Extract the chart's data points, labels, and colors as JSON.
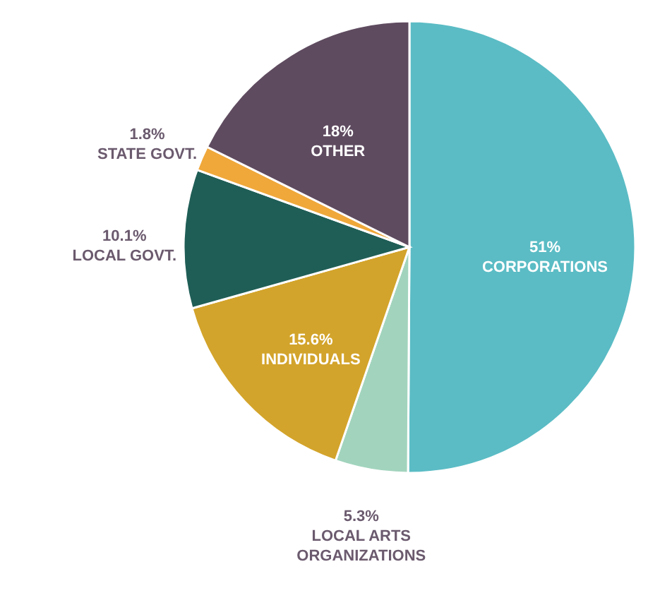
{
  "chart_data": {
    "type": "pie",
    "categories": [
      "CORPORATIONS",
      "LOCAL ARTS ORGANIZATIONS",
      "INDIVIDUALS",
      "LOCAL GOVT.",
      "STATE GOVT.",
      "OTHER"
    ],
    "values": [
      51,
      5.3,
      15.6,
      10.1,
      1.8,
      18
    ],
    "value_labels": [
      "51%",
      "5.3%",
      "15.6%",
      "10.1%",
      "1.8%",
      "18%"
    ],
    "colors": [
      "#5bbcc5",
      "#a2d4bd",
      "#d3a42b",
      "#1f5e56",
      "#f0a83a",
      "#5f4b60"
    ]
  }
}
